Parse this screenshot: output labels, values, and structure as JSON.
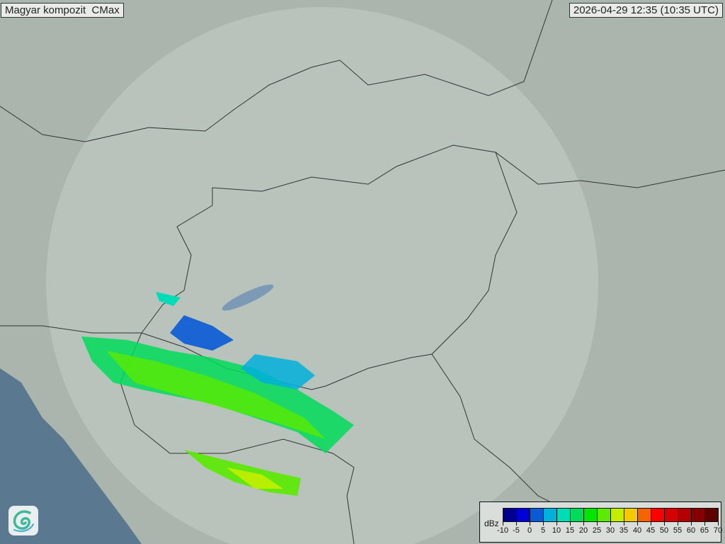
{
  "header": {
    "title": "Magyar kompozit  CMax",
    "timestamp": "2026-04-29 12:35 (10:35 UTC)"
  },
  "legend": {
    "unit": "dBz",
    "colors": [
      "#00008f",
      "#0000d6",
      "#0a5ad6",
      "#00b0dc",
      "#00dcb8",
      "#00dc5a",
      "#00e600",
      "#5aeb00",
      "#c3ee00",
      "#f5c800",
      "#f56400",
      "#ff0000",
      "#d70000",
      "#b40000",
      "#870000",
      "#5f0000"
    ],
    "ticks": [
      "-10",
      "-5",
      "0",
      "5",
      "10",
      "15",
      "20",
      "25",
      "30",
      "35",
      "40",
      "45",
      "50",
      "55",
      "60",
      "65",
      "70"
    ]
  },
  "map": {
    "land_color": "#a9b5ad",
    "sea_color": "#5a7890",
    "radar_coverage_color": "#c4cdc8",
    "logo": "weather-service-swirl-logo"
  }
}
